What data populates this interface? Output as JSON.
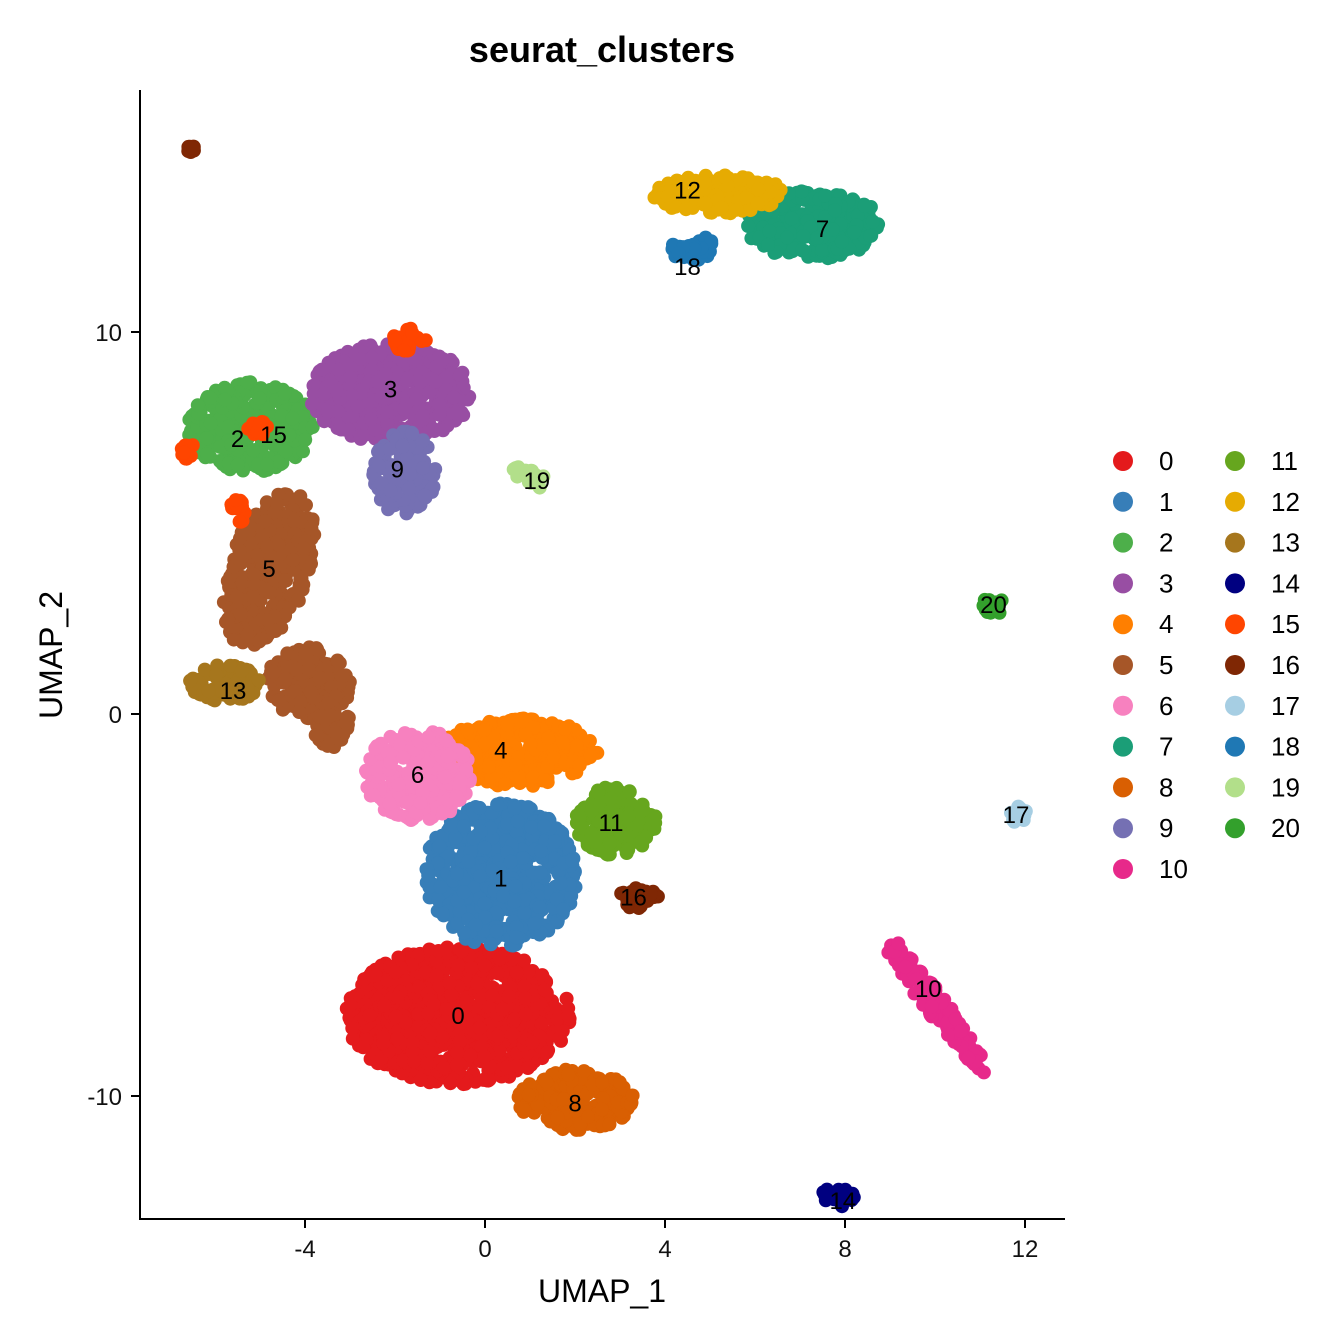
{
  "chart_data": {
    "type": "scatter",
    "title": "seurat_clusters",
    "xlabel": "UMAP_1",
    "ylabel": "UMAP_2",
    "xlim": [
      -7.8,
      12.8
    ],
    "ylim": [
      -13.2,
      16.0
    ],
    "xticks": [
      -4,
      0,
      4,
      8,
      12
    ],
    "xtick_labels": [
      "-4",
      "0",
      "4",
      "8",
      "12"
    ],
    "yticks": [
      -10,
      0,
      10
    ],
    "ytick_labels": [
      "-10",
      "0",
      "10"
    ],
    "grid": false,
    "legend_position": "right",
    "legend_columns": 2,
    "series": [
      {
        "name": "0",
        "color": "#E41A1C",
        "label_pos": [
          -0.6,
          -7.9
        ],
        "regions": [
          [
            -0.6,
            -7.9,
            2.5,
            1.8,
            0
          ]
        ]
      },
      {
        "name": "1",
        "color": "#377EB8",
        "label_pos": [
          0.35,
          -4.3
        ],
        "regions": [
          [
            0.35,
            -4.2,
            1.7,
            1.9,
            0
          ]
        ]
      },
      {
        "name": "2",
        "color": "#4DAF4A",
        "label_pos": [
          -5.5,
          7.2
        ],
        "regions": [
          [
            -5.2,
            7.5,
            1.4,
            1.2,
            0
          ]
        ]
      },
      {
        "name": "3",
        "color": "#984EA3",
        "label_pos": [
          -2.1,
          8.5
        ],
        "regions": [
          [
            -2.1,
            8.4,
            1.8,
            1.3,
            0
          ]
        ]
      },
      {
        "name": "4",
        "color": "#FF7F00",
        "label_pos": [
          0.35,
          -0.95
        ],
        "regions": [
          [
            0.7,
            -1.0,
            1.8,
            0.9,
            0
          ]
        ]
      },
      {
        "name": "5",
        "color": "#A65628",
        "label_pos": [
          -4.8,
          3.8
        ],
        "regions": [
          [
            -4.8,
            3.8,
            0.9,
            2.1,
            -15
          ],
          [
            -3.9,
            0.8,
            0.9,
            1.0,
            30
          ],
          [
            -3.4,
            -0.3,
            0.4,
            0.6,
            0
          ]
        ]
      },
      {
        "name": "6",
        "color": "#F781BF",
        "label_pos": [
          -1.5,
          -1.6
        ],
        "regions": [
          [
            -1.5,
            -1.6,
            1.2,
            1.2,
            0
          ]
        ]
      },
      {
        "name": "7",
        "color": "#1B9E77",
        "label_pos": [
          7.5,
          12.7
        ],
        "regions": [
          [
            7.3,
            12.8,
            1.5,
            0.9,
            0
          ]
        ]
      },
      {
        "name": "8",
        "color": "#D95F02",
        "label_pos": [
          2.0,
          -10.2
        ],
        "regions": [
          [
            2.0,
            -10.1,
            1.3,
            0.8,
            0
          ]
        ]
      },
      {
        "name": "9",
        "color": "#7570B3",
        "label_pos": [
          -1.95,
          6.4
        ],
        "regions": [
          [
            -1.8,
            6.3,
            0.7,
            1.1,
            0
          ]
        ]
      },
      {
        "name": "10",
        "color": "#E7298A",
        "label_pos": [
          9.85,
          -7.2
        ],
        "regions": [
          [
            10.0,
            -7.6,
            0.25,
            2.3,
            32
          ]
        ]
      },
      {
        "name": "11",
        "color": "#66A61E",
        "label_pos": [
          2.8,
          -2.85
        ],
        "regions": [
          [
            2.9,
            -2.8,
            0.9,
            0.9,
            0
          ]
        ]
      },
      {
        "name": "12",
        "color": "#E6AB02",
        "label_pos": [
          4.5,
          13.7
        ],
        "regions": [
          [
            5.2,
            13.6,
            1.5,
            0.5,
            0
          ]
        ]
      },
      {
        "name": "13",
        "color": "#A6761D",
        "label_pos": [
          -5.6,
          0.6
        ],
        "regions": [
          [
            -5.8,
            0.8,
            0.8,
            0.5,
            0
          ]
        ]
      },
      {
        "name": "14",
        "color": "#000080",
        "label_pos": [
          7.95,
          -12.75
        ],
        "regions": [
          [
            7.85,
            -12.6,
            0.35,
            0.3,
            0
          ]
        ]
      },
      {
        "name": "15",
        "color": "#FF4500",
        "label_pos": [
          -4.7,
          7.3
        ],
        "regions": [
          [
            -6.6,
            6.9,
            0.15,
            0.25,
            0
          ],
          [
            -5.5,
            5.3,
            0.2,
            0.4,
            0
          ],
          [
            -1.7,
            9.8,
            0.4,
            0.3,
            0
          ],
          [
            -5.0,
            7.5,
            0.3,
            0.2,
            0
          ]
        ]
      },
      {
        "name": "16",
        "color": "#7F2704",
        "label_pos": [
          3.3,
          -4.8
        ],
        "regions": [
          [
            3.4,
            -4.8,
            0.45,
            0.3,
            0
          ],
          [
            -6.55,
            14.8,
            0.1,
            0.1,
            0
          ]
        ]
      },
      {
        "name": "17",
        "color": "#A6CEE3",
        "label_pos": [
          11.8,
          -2.65
        ],
        "regions": [
          [
            11.85,
            -2.7,
            0.2,
            0.3,
            0
          ]
        ]
      },
      {
        "name": "18",
        "color": "#1F78B4",
        "label_pos": [
          4.5,
          11.7
        ],
        "regions": [
          [
            4.6,
            12.2,
            0.5,
            0.35,
            0
          ]
        ]
      },
      {
        "name": "19",
        "color": "#B2DF8A",
        "label_pos": [
          1.15,
          6.1
        ],
        "regions": [
          [
            1.0,
            6.2,
            0.45,
            0.2,
            -30
          ]
        ]
      },
      {
        "name": "20",
        "color": "#33A02C",
        "label_pos": [
          11.3,
          2.85
        ],
        "regions": [
          [
            11.3,
            2.85,
            0.25,
            0.25,
            0
          ]
        ]
      }
    ]
  }
}
